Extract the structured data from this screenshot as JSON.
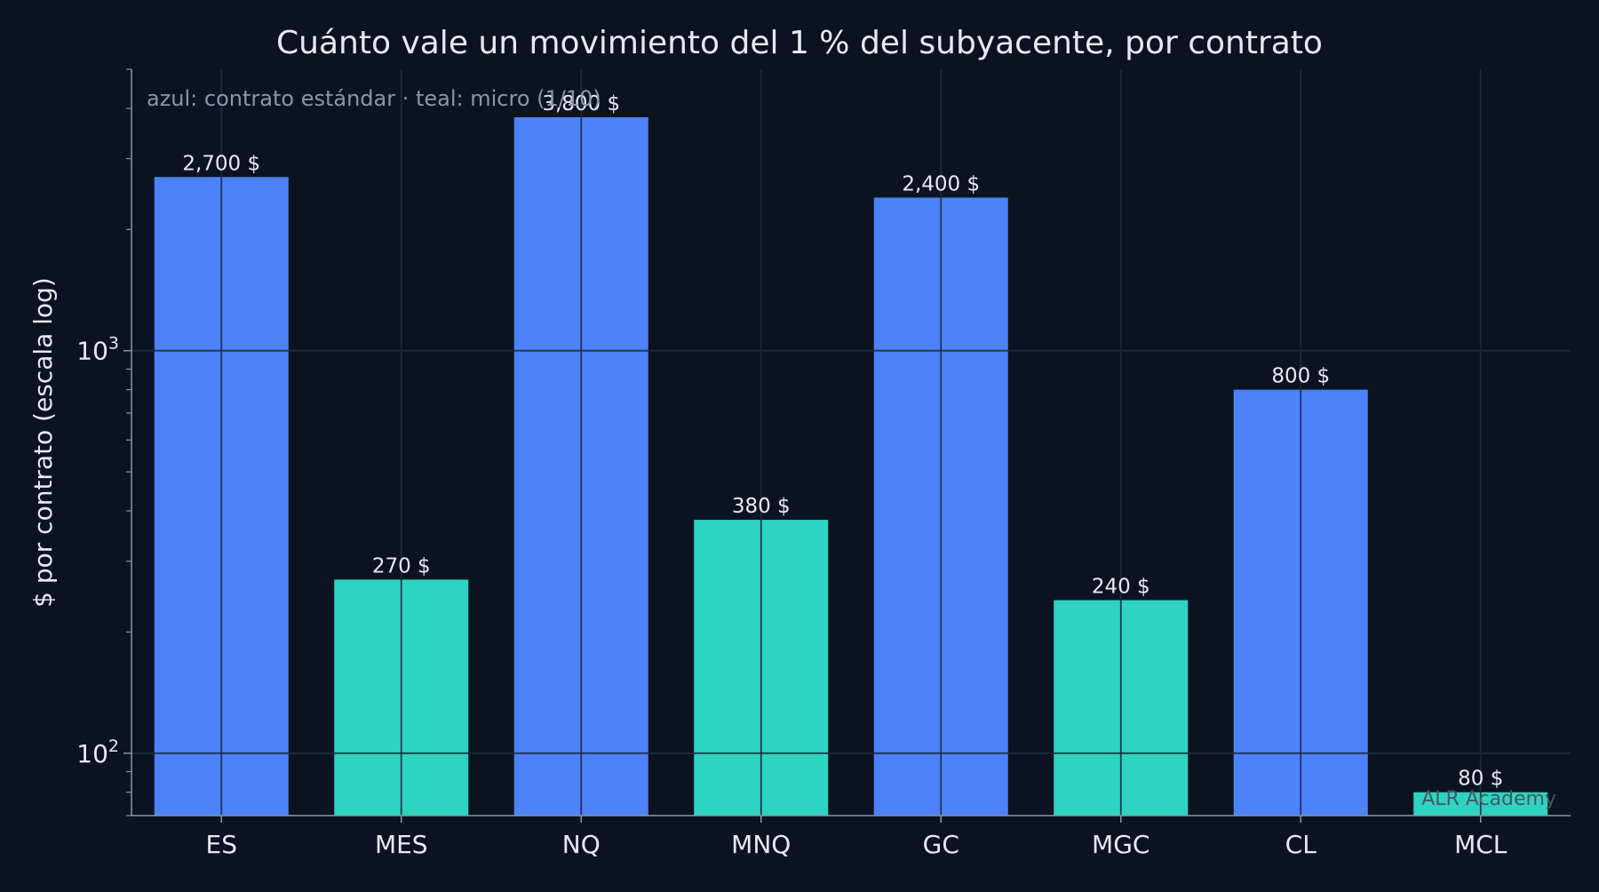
{
  "chart_data": {
    "type": "bar",
    "title": "Cuánto vale un movimiento del 1 % del subyacente, por contrato",
    "ylabel": "$ por contrato (escala log)",
    "xlabel": "",
    "yscale": "log",
    "ylim": [
      70,
      5000
    ],
    "grid": true,
    "annotation": "azul: contrato estándar · teal: micro (1/10)",
    "watermark": "ALR Academy",
    "categories": [
      "ES",
      "MES",
      "NQ",
      "MNQ",
      "GC",
      "MGC",
      "CL",
      "MCL"
    ],
    "values": [
      2700,
      270,
      3800,
      380,
      2400,
      240,
      800,
      80
    ],
    "data_labels": [
      "2,700 $",
      "270 $",
      "3,800 $",
      "380 $",
      "2,400 $",
      "240 $",
      "800 $",
      "80 $"
    ],
    "bar_kinds": [
      "standard",
      "micro",
      "standard",
      "micro",
      "standard",
      "micro",
      "standard",
      "micro"
    ],
    "y_ticks": [
      {
        "value": 100,
        "base": "10",
        "exp": "2"
      },
      {
        "value": 1000,
        "base": "10",
        "exp": "3"
      }
    ],
    "colors": {
      "background": "#0c1320",
      "standard": "#4d82fd",
      "micro": "#2dd4c2",
      "grid": "#1e2a36",
      "axis": "#8a96a8",
      "text": "#e6eaf0",
      "annotation": "#8a96a8",
      "watermark": "#4a5564"
    }
  }
}
